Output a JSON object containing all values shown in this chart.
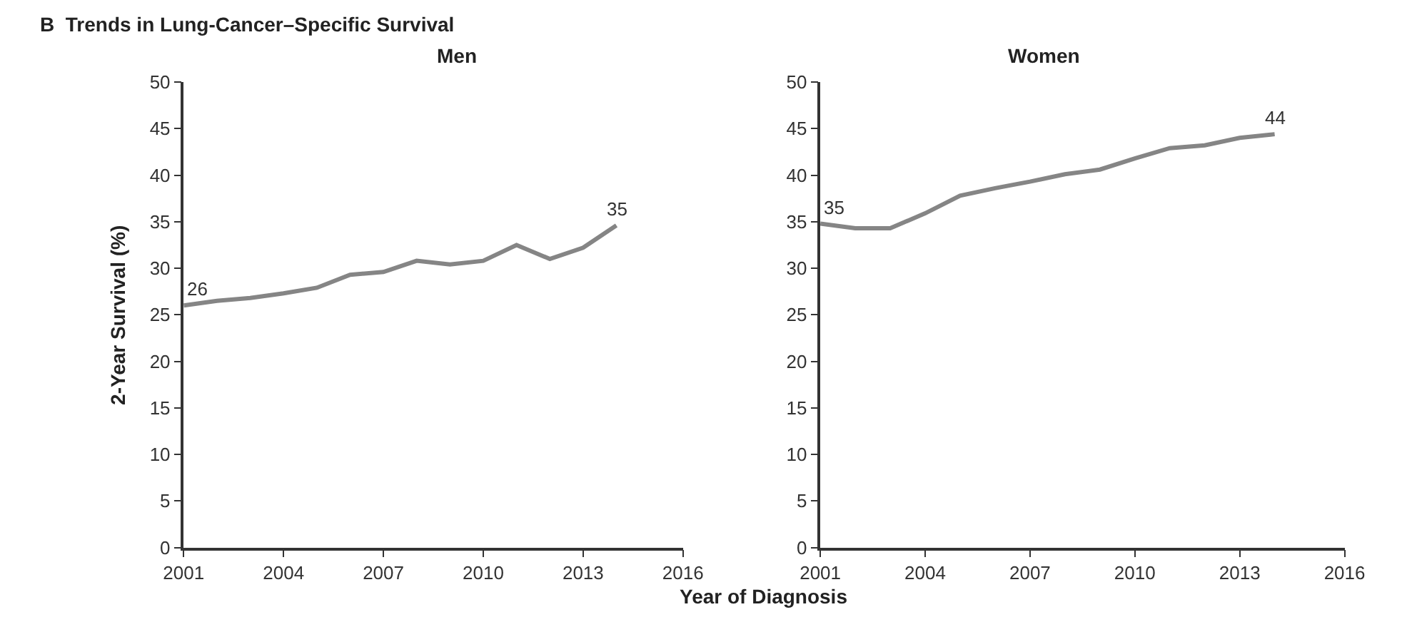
{
  "chart_data": [
    {
      "type": "line",
      "title": "Men",
      "xlabel": "Year of Diagnosis",
      "ylabel": "2-Year Survival (%)",
      "annotations": [
        "B  Trends in Lung-Cancer–Specific Survival"
      ],
      "x": [
        2001,
        2002,
        2003,
        2004,
        2005,
        2006,
        2007,
        2008,
        2009,
        2010,
        2011,
        2012,
        2013,
        2014
      ],
      "series": [
        {
          "color": "#858585",
          "values": [
            26.0,
            26.5,
            26.8,
            27.3,
            27.9,
            29.3,
            29.6,
            30.8,
            30.4,
            30.8,
            32.5,
            31.0,
            32.2,
            34.6
          ],
          "value_labels": [
            "26",
            null,
            null,
            null,
            null,
            null,
            null,
            null,
            null,
            null,
            null,
            null,
            null,
            "35"
          ]
        }
      ],
      "xlim": [
        2001,
        2016
      ],
      "xticks": [
        2001,
        2004,
        2007,
        2010,
        2013,
        2016
      ],
      "ylim": [
        0,
        50
      ],
      "yticks": [
        0,
        5,
        10,
        15,
        20,
        25,
        30,
        35,
        40,
        45,
        50
      ],
      "marker": "none",
      "line_style": "solid"
    },
    {
      "type": "line",
      "title": "Women",
      "x": [
        2001,
        2002,
        2003,
        2004,
        2005,
        2006,
        2007,
        2008,
        2009,
        2010,
        2011,
        2012,
        2013,
        2014
      ],
      "series": [
        {
          "color": "#858585",
          "values": [
            34.8,
            34.3,
            34.3,
            35.9,
            37.8,
            38.6,
            39.3,
            40.1,
            40.6,
            41.8,
            42.9,
            43.2,
            44.0,
            44.4
          ],
          "value_labels": [
            "35",
            null,
            null,
            null,
            null,
            null,
            null,
            null,
            null,
            null,
            null,
            null,
            null,
            "44"
          ]
        }
      ],
      "xlim": [
        2001,
        2016
      ],
      "xticks": [
        2001,
        2004,
        2007,
        2010,
        2013,
        2016
      ],
      "ylim": [
        0,
        50
      ],
      "yticks": [
        0,
        5,
        10,
        15,
        20,
        25,
        30,
        35,
        40,
        45,
        50
      ],
      "marker": "none",
      "line_style": "solid"
    }
  ]
}
